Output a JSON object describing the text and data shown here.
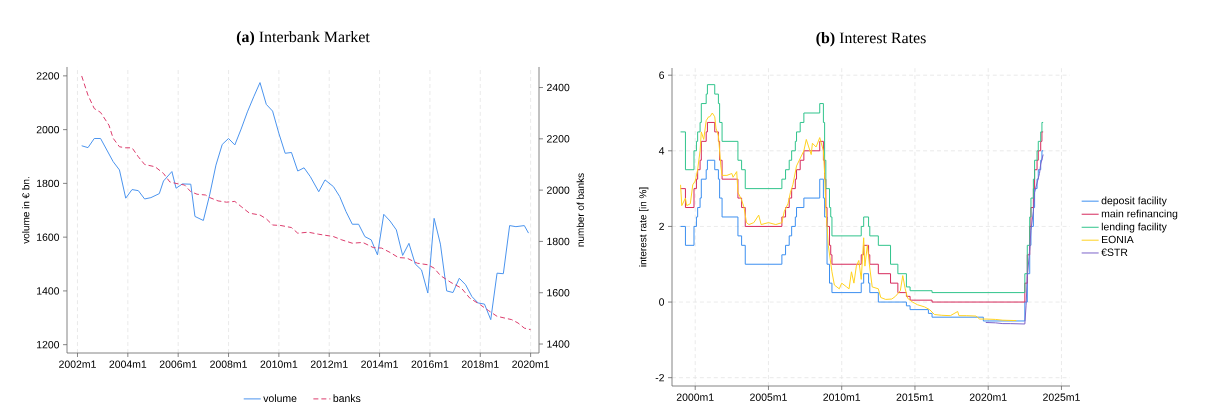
{
  "chart_data": [
    {
      "type": "line",
      "title": "**(a)** Interbank Market",
      "ylabel": "volume in € bn.",
      "y2label": "number of banks",
      "xlim": [
        "2001-08",
        "2020-05"
      ],
      "xticks": [
        {
          "value": "2002-01",
          "label": "2002m1"
        },
        {
          "value": "2004-01",
          "label": "2004m1"
        },
        {
          "value": "2006-01",
          "label": "2006m1"
        },
        {
          "value": "2008-01",
          "label": "2008m1"
        },
        {
          "value": "2010-01",
          "label": "2010m1"
        },
        {
          "value": "2012-01",
          "label": "2012m1"
        },
        {
          "value": "2014-01",
          "label": "2014m1"
        },
        {
          "value": "2016-01",
          "label": "2016m1"
        },
        {
          "value": "2018-01",
          "label": "2018m1"
        },
        {
          "value": "2020-01",
          "label": "2020m1"
        }
      ],
      "ylim": [
        1169,
        2233
      ],
      "yticks": [
        1200,
        1400,
        1600,
        1800,
        2000,
        2200
      ],
      "y2lim": [
        1365,
        2480
      ],
      "y2ticks": [
        1400,
        1600,
        1800,
        2000,
        2200,
        2400
      ],
      "grid": "x",
      "legend": "bottom",
      "series": [
        {
          "name": "volume",
          "color": "#4a94ee",
          "line_style": "solid",
          "x": [
            "2002-03",
            "2002-06",
            "2002-09",
            "2002-12",
            "2003-06",
            "2003-09",
            "2003-12",
            "2004-03",
            "2004-06",
            "2004-09",
            "2004-12",
            "2005-04",
            "2005-06",
            "2005-10",
            "2005-12",
            "2006-03",
            "2006-07",
            "2006-09",
            "2007-01",
            "2007-04",
            "2007-07",
            "2007-10",
            "2008-01",
            "2008-04",
            "2008-07",
            "2008-10",
            "2009-01",
            "2009-04",
            "2009-07",
            "2009-10",
            "2010-01",
            "2010-04",
            "2010-07",
            "2010-10",
            "2011-01",
            "2011-04",
            "2011-08",
            "2011-11",
            "2012-03",
            "2012-06",
            "2012-09",
            "2012-12",
            "2013-03",
            "2013-06",
            "2013-09",
            "2013-12",
            "2014-03",
            "2014-06",
            "2014-09",
            "2014-12",
            "2015-03",
            "2015-06",
            "2015-09",
            "2015-12",
            "2016-03",
            "2016-06",
            "2016-09",
            "2016-12",
            "2017-03",
            "2017-06",
            "2017-09",
            "2017-12",
            "2018-03",
            "2018-06",
            "2018-09",
            "2018-12",
            "2019-03",
            "2019-06",
            "2019-10",
            "2019-12"
          ],
          "values": [
            1940,
            1933,
            1967,
            1967,
            1881,
            1850,
            1745,
            1777,
            1773,
            1742,
            1747,
            1762,
            1809,
            1844,
            1782,
            1798,
            1797,
            1677,
            1662,
            1757,
            1868,
            1945,
            1967,
            1943,
            2002,
            2066,
            2122,
            2175,
            2094,
            2069,
            1986,
            1912,
            1915,
            1846,
            1858,
            1825,
            1769,
            1813,
            1788,
            1751,
            1695,
            1648,
            1648,
            1602,
            1590,
            1534,
            1685,
            1660,
            1627,
            1532,
            1577,
            1500,
            1478,
            1392,
            1670,
            1574,
            1400,
            1394,
            1447,
            1423,
            1379,
            1355,
            1351,
            1293,
            1466,
            1464,
            1643,
            1639,
            1643,
            1615
          ]
        },
        {
          "name": "banks",
          "color": "#dc3c6c",
          "axis": "y2",
          "line_style": "dashed",
          "x": [
            "2002-03",
            "2002-06",
            "2002-09",
            "2002-12",
            "2003-04",
            "2003-06",
            "2003-09",
            "2003-12",
            "2004-03",
            "2004-06",
            "2004-09",
            "2005-02",
            "2005-06",
            "2005-09",
            "2005-12",
            "2006-04",
            "2006-07",
            "2006-10",
            "2007-02",
            "2007-04",
            "2007-08",
            "2007-12",
            "2008-04",
            "2008-07",
            "2008-11",
            "2009-04",
            "2009-07",
            "2009-10",
            "2010-02",
            "2010-07",
            "2010-10",
            "2011-03",
            "2011-08",
            "2012-03",
            "2012-07",
            "2012-12",
            "2013-05",
            "2013-10",
            "2014-02",
            "2014-06",
            "2014-10",
            "2015-02",
            "2015-07",
            "2015-12",
            "2016-03",
            "2016-06",
            "2016-11",
            "2017-04",
            "2017-08",
            "2018-01",
            "2018-05",
            "2018-09",
            "2019-04",
            "2019-07",
            "2019-10",
            "2020-01"
          ],
          "values": [
            2445,
            2370,
            2318,
            2303,
            2253,
            2202,
            2169,
            2165,
            2165,
            2130,
            2100,
            2091,
            2065,
            2032,
            2026,
            2020,
            1994,
            1984,
            1981,
            1971,
            1958,
            1953,
            1956,
            1936,
            1910,
            1903,
            1888,
            1864,
            1862,
            1854,
            1832,
            1836,
            1828,
            1819,
            1806,
            1793,
            1796,
            1776,
            1774,
            1757,
            1737,
            1735,
            1715,
            1709,
            1696,
            1667,
            1640,
            1618,
            1579,
            1553,
            1530,
            1508,
            1495,
            1482,
            1462,
            1456
          ]
        }
      ]
    },
    {
      "type": "line",
      "title": "**(b)** Interest Rates",
      "ylabel": "interest rate [in %]",
      "xlim": [
        "1998-06",
        "2025-08"
      ],
      "xticks": [
        {
          "value": "2000-01",
          "label": "2000m1"
        },
        {
          "value": "2005-01",
          "label": "2005m1"
        },
        {
          "value": "2010-01",
          "label": "2010m1"
        },
        {
          "value": "2015-01",
          "label": "2015m1"
        },
        {
          "value": "2020-01",
          "label": "2020m1"
        },
        {
          "value": "2025-01",
          "label": "2025m1"
        }
      ],
      "ylim": [
        -2.22,
        6.19
      ],
      "yticks": [
        -2,
        0,
        2,
        4,
        6
      ],
      "grid": true,
      "legend": "right",
      "series": [
        {
          "name": "deposit facility",
          "color": "#3b8ff0",
          "type": "step",
          "x": [
            "1999-01",
            "1999-05",
            "1999-12",
            "2000-02",
            "2000-03",
            "2000-05",
            "2000-06",
            "2000-10",
            "2000-11",
            "2001-05",
            "2001-08",
            "2001-09",
            "2001-11",
            "2002-12",
            "2003-03",
            "2003-06",
            "2005-12",
            "2006-03",
            "2006-06",
            "2006-08",
            "2006-11",
            "2006-12",
            "2007-06",
            "2008-07",
            "2008-10",
            "2008-11",
            "2009-01",
            "2009-03",
            "2009-05",
            "2011-05",
            "2011-07",
            "2011-11",
            "2011-12",
            "2012-07",
            "2014-06",
            "2014-09",
            "2015-12",
            "2016-03",
            "2019-09",
            "2022-07",
            "2022-09",
            "2022-11",
            "2022-12",
            "2023-02",
            "2023-03",
            "2023-05",
            "2023-06",
            "2023-08",
            "2023-09",
            "2023-10"
          ],
          "values": [
            2.0,
            1.5,
            2.0,
            2.25,
            2.5,
            2.75,
            3.25,
            3.5,
            3.75,
            3.5,
            3.25,
            2.75,
            2.25,
            1.75,
            1.5,
            1.0,
            1.25,
            1.5,
            1.75,
            2.0,
            2.25,
            2.5,
            2.75,
            3.25,
            2.75,
            2.25,
            1.0,
            0.5,
            0.25,
            0.5,
            0.75,
            0.5,
            0.25,
            0.0,
            -0.1,
            -0.2,
            -0.3,
            -0.4,
            -0.5,
            0.0,
            0.75,
            1.5,
            2.0,
            2.5,
            3.0,
            3.25,
            3.5,
            3.75,
            4.0,
            4.0
          ]
        },
        {
          "name": "main refinancing",
          "color": "#d6285a",
          "type": "step",
          "x": [
            "1999-01",
            "1999-05",
            "1999-12",
            "2000-02",
            "2000-03",
            "2000-05",
            "2000-06",
            "2000-10",
            "2000-11",
            "2001-05",
            "2001-08",
            "2001-09",
            "2001-11",
            "2002-12",
            "2003-03",
            "2003-06",
            "2005-12",
            "2006-03",
            "2006-06",
            "2006-08",
            "2006-11",
            "2006-12",
            "2007-03",
            "2007-06",
            "2008-07",
            "2008-10",
            "2008-11",
            "2008-12",
            "2009-01",
            "2009-03",
            "2009-04",
            "2009-05",
            "2011-05",
            "2011-07",
            "2011-11",
            "2011-12",
            "2012-07",
            "2013-05",
            "2013-11",
            "2014-06",
            "2014-09",
            "2016-03",
            "2022-07",
            "2022-09",
            "2022-11",
            "2022-12",
            "2023-02",
            "2023-03",
            "2023-05",
            "2023-06",
            "2023-08",
            "2023-09",
            "2023-10"
          ],
          "values": [
            3.0,
            2.5,
            3.0,
            3.25,
            3.5,
            3.75,
            4.25,
            4.5,
            4.75,
            4.5,
            4.25,
            3.75,
            3.25,
            2.75,
            2.5,
            2.0,
            2.25,
            2.5,
            2.75,
            3.0,
            3.25,
            3.5,
            3.75,
            4.0,
            4.25,
            3.75,
            3.25,
            2.5,
            2.0,
            1.5,
            1.25,
            1.0,
            1.25,
            1.5,
            1.25,
            1.0,
            0.75,
            0.5,
            0.25,
            0.15,
            0.05,
            0.0,
            0.5,
            1.25,
            2.0,
            2.5,
            3.0,
            3.5,
            3.75,
            4.0,
            4.25,
            4.5,
            4.5
          ]
        },
        {
          "name": "lending facility",
          "color": "#2fc48c",
          "type": "step",
          "x": [
            "1999-01",
            "1999-05",
            "1999-12",
            "2000-02",
            "2000-03",
            "2000-05",
            "2000-06",
            "2000-10",
            "2000-11",
            "2001-05",
            "2001-08",
            "2001-09",
            "2001-11",
            "2002-12",
            "2003-03",
            "2003-06",
            "2005-12",
            "2006-03",
            "2006-06",
            "2006-08",
            "2006-11",
            "2006-12",
            "2007-03",
            "2007-06",
            "2008-07",
            "2008-10",
            "2008-11",
            "2008-12",
            "2009-03",
            "2009-04",
            "2009-05",
            "2011-05",
            "2011-07",
            "2011-11",
            "2011-12",
            "2012-07",
            "2013-05",
            "2013-11",
            "2014-06",
            "2014-09",
            "2016-03",
            "2022-07",
            "2022-09",
            "2022-11",
            "2022-12",
            "2023-02",
            "2023-03",
            "2023-05",
            "2023-06",
            "2023-08",
            "2023-09",
            "2023-10"
          ],
          "values": [
            4.5,
            3.5,
            4.0,
            4.25,
            4.5,
            4.75,
            5.25,
            5.5,
            5.75,
            5.5,
            5.25,
            4.75,
            4.25,
            3.75,
            3.5,
            3.0,
            3.25,
            3.5,
            3.75,
            4.0,
            4.25,
            4.5,
            4.75,
            5.0,
            5.25,
            4.75,
            3.75,
            3.0,
            2.5,
            2.25,
            1.75,
            2.0,
            2.25,
            2.0,
            1.75,
            1.5,
            1.0,
            0.75,
            0.4,
            0.3,
            0.25,
            0.75,
            1.5,
            2.25,
            2.75,
            3.25,
            3.75,
            4.0,
            4.25,
            4.5,
            4.75,
            4.75
          ]
        },
        {
          "name": "EONIA",
          "color": "#ffd21f",
          "type": "line",
          "x": [
            "1999-01",
            "1999-02",
            "1999-05",
            "1999-06",
            "1999-09",
            "1999-11",
            "2000-01",
            "2000-03",
            "2000-05",
            "2000-06",
            "2000-08",
            "2000-10",
            "2000-12",
            "2001-01",
            "2001-03",
            "2001-05",
            "2001-06",
            "2001-08",
            "2001-10",
            "2001-11",
            "2002-03",
            "2002-07",
            "2002-08",
            "2002-11",
            "2002-12",
            "2003-03",
            "2003-05",
            "2003-07",
            "2003-09",
            "2004-01",
            "2004-05",
            "2004-07",
            "2005-01",
            "2005-07",
            "2005-12",
            "2006-02",
            "2006-05",
            "2006-07",
            "2006-09",
            "2006-12",
            "2007-03",
            "2007-06",
            "2007-08",
            "2007-10",
            "2007-12",
            "2008-01",
            "2008-04",
            "2008-07",
            "2008-10",
            "2008-11",
            "2008-12",
            "2009-02",
            "2009-05",
            "2009-07",
            "2009-11",
            "2010-01",
            "2010-05",
            "2010-07",
            "2010-09",
            "2010-11",
            "2011-01",
            "2011-03",
            "2011-05",
            "2011-07",
            "2011-08",
            "2011-10",
            "2011-12",
            "2012-02",
            "2012-07",
            "2012-09",
            "2013-01",
            "2013-06",
            "2013-09",
            "2014-01",
            "2014-03",
            "2014-05",
            "2014-07",
            "2014-11",
            "2015-03",
            "2015-09",
            "2016-01",
            "2016-05",
            "2016-11",
            "2017-06",
            "2017-12",
            "2018-01",
            "2018-07",
            "2019-03",
            "2019-06",
            "2019-12",
            "2020-07",
            "2021-01",
            "2021-12"
          ],
          "values": [
            3.1,
            2.55,
            2.75,
            2.55,
            2.6,
            3.1,
            3.2,
            3.5,
            4.0,
            4.5,
            4.3,
            4.8,
            4.9,
            4.9,
            5.0,
            4.9,
            4.6,
            4.4,
            3.6,
            3.35,
            3.35,
            3.4,
            3.3,
            3.45,
            2.9,
            2.7,
            2.5,
            2.1,
            2.05,
            2.1,
            2.3,
            2.05,
            2.1,
            2.05,
            2.1,
            2.4,
            2.6,
            2.9,
            3.1,
            3.6,
            3.8,
            4.0,
            4.3,
            4.1,
            3.9,
            4.2,
            4.1,
            4.35,
            4.0,
            3.4,
            2.5,
            1.5,
            0.8,
            0.45,
            0.35,
            0.5,
            0.4,
            0.35,
            0.8,
            0.5,
            0.95,
            1.1,
            0.6,
            1.7,
            0.95,
            1.5,
            0.9,
            0.4,
            0.35,
            0.12,
            0.07,
            0.08,
            0.15,
            0.3,
            0.7,
            0.35,
            0.1,
            0.0,
            -0.07,
            -0.13,
            -0.2,
            -0.33,
            -0.35,
            -0.36,
            -0.25,
            -0.36,
            -0.36,
            -0.37,
            -0.45,
            -0.45,
            -0.46,
            -0.48,
            -0.49
          ]
        },
        {
          "name": "€STR",
          "color": "#7b62c9",
          "type": "line",
          "x": [
            "2019-11",
            "2020-07",
            "2021-01",
            "2021-07",
            "2022-07",
            "2022-08",
            "2022-09",
            "2022-11",
            "2022-12",
            "2023-02",
            "2023-03",
            "2023-05",
            "2023-07",
            "2023-08",
            "2023-10"
          ],
          "values": [
            -0.54,
            -0.55,
            -0.57,
            -0.57,
            -0.58,
            -0.1,
            0.65,
            1.4,
            1.9,
            2.4,
            2.9,
            3.15,
            3.4,
            3.65,
            3.9
          ]
        }
      ]
    }
  ]
}
